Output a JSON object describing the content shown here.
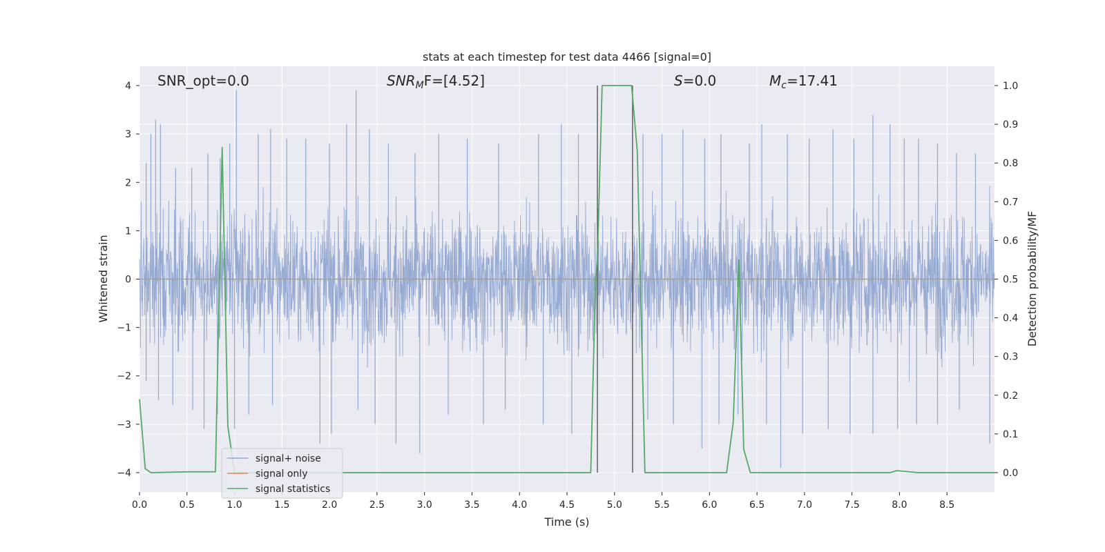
{
  "colors": {
    "plot_bg": "#eaeaf2",
    "grid": "#ffffff",
    "noise": "#92a7d0",
    "signal_only": "#dd8452",
    "statistics": "#55a868",
    "vline": "#555555",
    "zero_line": "#a0a0a0"
  },
  "chart_data": {
    "type": "line",
    "title": "stats at each timestep for test data 4466 [signal=0]",
    "xlabel": "Time (s)",
    "ylabel_left": "Whitened strain",
    "ylabel_right": "Detection probability/MF",
    "xlim": [
      0,
      9.0
    ],
    "ylim_left": [
      -4.4,
      4.4
    ],
    "ylim_right": [
      -0.05,
      1.05
    ],
    "x_ticks": [
      "0.0",
      "0.5",
      "1.0",
      "1.5",
      "2.0",
      "2.5",
      "3.0",
      "3.5",
      "4.0",
      "4.5",
      "5.0",
      "5.5",
      "6.0",
      "6.5",
      "7.0",
      "7.5",
      "8.0",
      "8.5"
    ],
    "y_ticks_left": [
      "-4",
      "-3",
      "-2",
      "-1",
      "0",
      "1",
      "2",
      "3",
      "4"
    ],
    "y_ticks_right": [
      "0.0",
      "0.1",
      "0.2",
      "0.3",
      "0.4",
      "0.5",
      "0.6",
      "0.7",
      "0.8",
      "0.9",
      "1.0"
    ],
    "grid": true,
    "annotations": {
      "snr_opt": "SNR_opt=0.0",
      "snr_mf_main": "SNR",
      "snr_mf_sub": "M",
      "snr_mf_rest": "F=[4.52]",
      "s_main": "S",
      "s_rest": "=0.0",
      "mc_main": "M",
      "mc_sub": "c",
      "mc_rest": "=17.41"
    },
    "legend": {
      "position": "lower-left",
      "entries": [
        "signal+ noise",
        "signal only",
        "signal statistics"
      ]
    },
    "series": [
      {
        "name": "signal+ noise",
        "axis": "left",
        "description_values": "noise approx gaussian, envelope about +/-2.5, peaks to 3.9",
        "spikes_up": [
          [
            0.07,
            2.4
          ],
          [
            0.12,
            3.0
          ],
          [
            0.17,
            3.3
          ],
          [
            0.22,
            3.2
          ],
          [
            0.38,
            2.3
          ],
          [
            0.55,
            2.3
          ],
          [
            0.72,
            2.6
          ],
          [
            0.85,
            2.5
          ],
          [
            0.95,
            2.8
          ],
          [
            1.02,
            3.9
          ],
          [
            1.25,
            3.0
          ],
          [
            1.38,
            3.1
          ],
          [
            1.55,
            2.9
          ],
          [
            1.75,
            2.9
          ],
          [
            2.0,
            2.8
          ],
          [
            2.18,
            3.2
          ],
          [
            2.28,
            3.9
          ],
          [
            2.42,
            3.1
          ],
          [
            2.62,
            2.8
          ],
          [
            2.9,
            2.6
          ],
          [
            3.15,
            3.0
          ],
          [
            3.45,
            2.9
          ],
          [
            3.78,
            2.8
          ],
          [
            4.2,
            3.0
          ],
          [
            4.44,
            3.2
          ],
          [
            4.62,
            3.0
          ],
          [
            5.3,
            3.0
          ],
          [
            5.5,
            3.0
          ],
          [
            5.72,
            3.1
          ],
          [
            5.95,
            2.9
          ],
          [
            6.12,
            3.0
          ],
          [
            6.42,
            2.8
          ],
          [
            6.55,
            3.2
          ],
          [
            6.82,
            3.0
          ],
          [
            7.05,
            2.9
          ],
          [
            7.3,
            3.1
          ],
          [
            7.52,
            2.9
          ],
          [
            7.72,
            3.4
          ],
          [
            7.9,
            3.2
          ],
          [
            8.05,
            2.9
          ],
          [
            8.2,
            2.9
          ],
          [
            8.4,
            2.8
          ],
          [
            8.6,
            2.6
          ],
          [
            8.8,
            2.6
          ]
        ],
        "spikes_down": [
          [
            0.07,
            -2.1
          ],
          [
            0.2,
            -2.5
          ],
          [
            0.35,
            -2.6
          ],
          [
            0.56,
            -2.7
          ],
          [
            0.68,
            -3.1
          ],
          [
            0.82,
            -2.8
          ],
          [
            1.0,
            -3.1
          ],
          [
            1.15,
            -2.8
          ],
          [
            1.4,
            -2.6
          ],
          [
            1.9,
            -3.4
          ],
          [
            2.02,
            -3.2
          ],
          [
            2.3,
            -2.7
          ],
          [
            2.48,
            -3.0
          ],
          [
            2.7,
            -3.4
          ],
          [
            2.95,
            -3.6
          ],
          [
            3.25,
            -2.8
          ],
          [
            3.62,
            -3.0
          ],
          [
            3.85,
            -2.7
          ],
          [
            4.25,
            -3.0
          ],
          [
            4.55,
            -3.2
          ],
          [
            5.35,
            -2.9
          ],
          [
            5.62,
            -3.0
          ],
          [
            5.92,
            -3.5
          ],
          [
            6.1,
            -3.0
          ],
          [
            6.3,
            -2.8
          ],
          [
            6.6,
            -3.0
          ],
          [
            6.75,
            -3.9
          ],
          [
            6.98,
            -3.2
          ],
          [
            7.25,
            -3.1
          ],
          [
            7.48,
            -3.2
          ],
          [
            7.72,
            -3.2
          ],
          [
            7.98,
            -3.1
          ],
          [
            8.18,
            -3.0
          ],
          [
            8.4,
            -3.0
          ],
          [
            8.63,
            -2.7
          ],
          [
            8.95,
            -3.4
          ]
        ]
      },
      {
        "name": "signal only",
        "axis": "left",
        "x": [
          0,
          9.0
        ],
        "y": [
          0,
          0
        ]
      },
      {
        "name": "signal statistics",
        "axis": "right",
        "x": [
          0.0,
          0.06,
          0.12,
          0.5,
          0.8,
          0.87,
          0.93,
          1.0,
          1.2,
          4.75,
          4.8,
          4.82,
          4.87,
          5.18,
          5.24,
          5.32,
          5.5,
          6.18,
          6.25,
          6.31,
          6.36,
          6.43,
          6.6,
          7.9,
          7.97,
          8.2,
          9.0
        ],
        "y": [
          0.19,
          0.01,
          0.0,
          0.002,
          0.002,
          0.84,
          0.12,
          0.0,
          0.0,
          0.0,
          0.5,
          0.55,
          1.0,
          1.0,
          0.83,
          0.0,
          0.0,
          0.0,
          0.13,
          0.55,
          0.06,
          0.0,
          0.0,
          0.0,
          0.005,
          0.0,
          0.0
        ]
      }
    ],
    "vlines": [
      4.82,
      5.19
    ],
    "vline_range_right": [
      0.0,
      1.0
    ]
  }
}
